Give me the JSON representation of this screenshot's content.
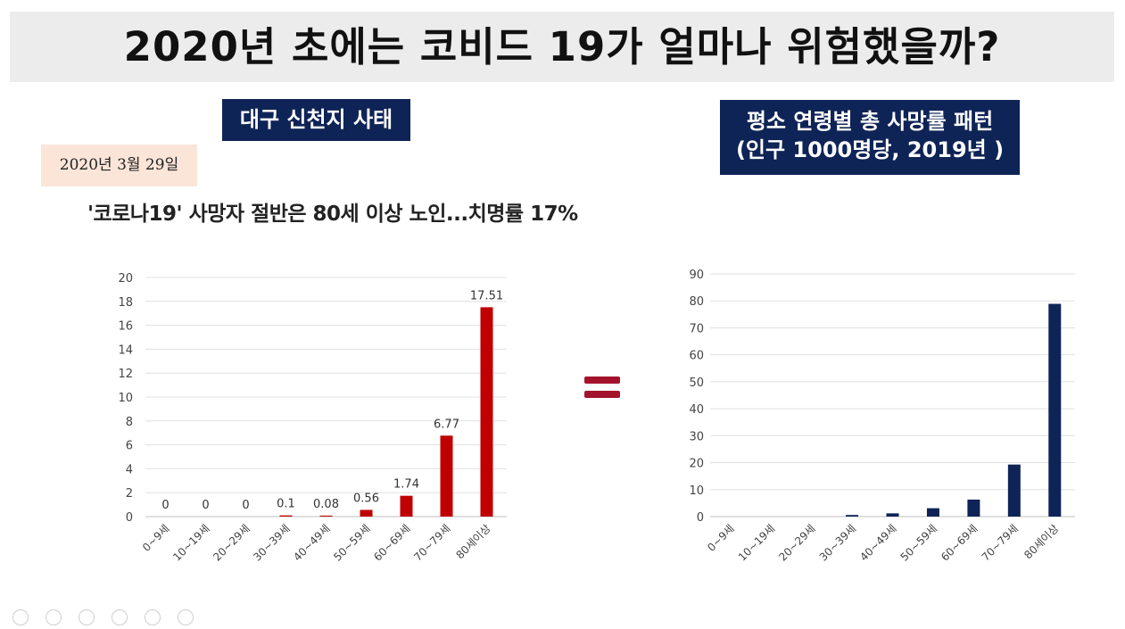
{
  "title": "2020년 초에는 코비드 19가 얼마나 위험했을까?",
  "left_box_label": "대구 신천지 사태",
  "right_box_line1": "평소 연령별 총 사망률 패턴",
  "right_box_line2": "(인구 1000명당, 2019년 )",
  "date_tag": "2020년 3월 29일",
  "headline": "'코로나19' 사망자 절반은 80세 이상 노인...치명률 17%",
  "colors": {
    "navy": "#0f2456",
    "red_bar": "#c00000",
    "navy_bar": "#0f2456",
    "date_bg": "#fbe5d9",
    "equal": "#a3132b"
  },
  "chart_data": [
    {
      "type": "bar",
      "categories": [
        "0~9세",
        "10~19세",
        "20~29세",
        "30~39세",
        "40~49세",
        "50~59세",
        "60~69세",
        "70~79세",
        "80세이상"
      ],
      "values": [
        0,
        0,
        0,
        0.1,
        0.08,
        0.56,
        1.74,
        6.77,
        17.51
      ],
      "data_labels": [
        "0",
        "0",
        "0",
        "0.1",
        "0.08",
        "0.56",
        "1.74",
        "6.77",
        "17.51"
      ],
      "ylim": [
        0,
        20
      ],
      "yticks": [
        0,
        2,
        4,
        6,
        8,
        10,
        12,
        14,
        16,
        18,
        20
      ],
      "grid": true,
      "color": "#c00000"
    },
    {
      "type": "bar",
      "categories": [
        "0~9세",
        "10~19세",
        "20~29세",
        "30~39세",
        "40~49세",
        "50~59세",
        "60~69세",
        "70~79세",
        "80세이상"
      ],
      "values": [
        0,
        0,
        0,
        0.6,
        1.2,
        3.1,
        6.3,
        19.3,
        78.9
      ],
      "ylim": [
        0,
        90
      ],
      "yticks": [
        0,
        10,
        20,
        30,
        40,
        50,
        60,
        70,
        80,
        90
      ],
      "grid": true,
      "color": "#0f2456"
    }
  ]
}
